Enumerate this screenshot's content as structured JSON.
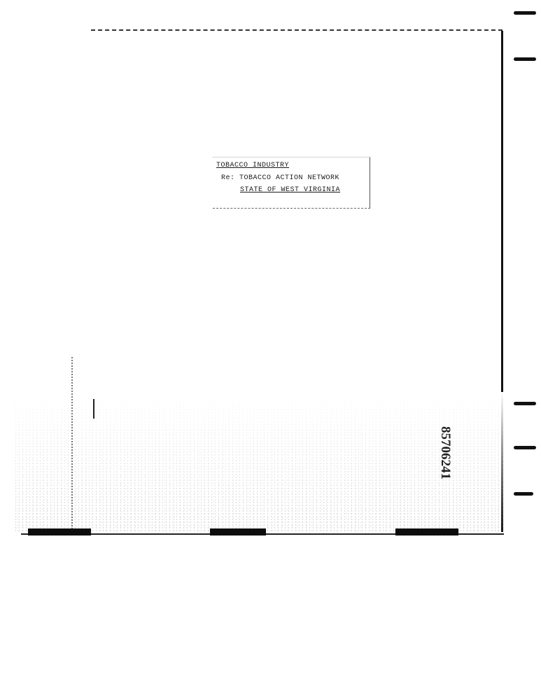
{
  "label": {
    "line1": "TOBACCO INDUSTRY",
    "line2": "Re: TOBACCO ACTION NETWORK",
    "line3": "STATE OF WEST VIRGINIA"
  },
  "document_number": "85706241"
}
